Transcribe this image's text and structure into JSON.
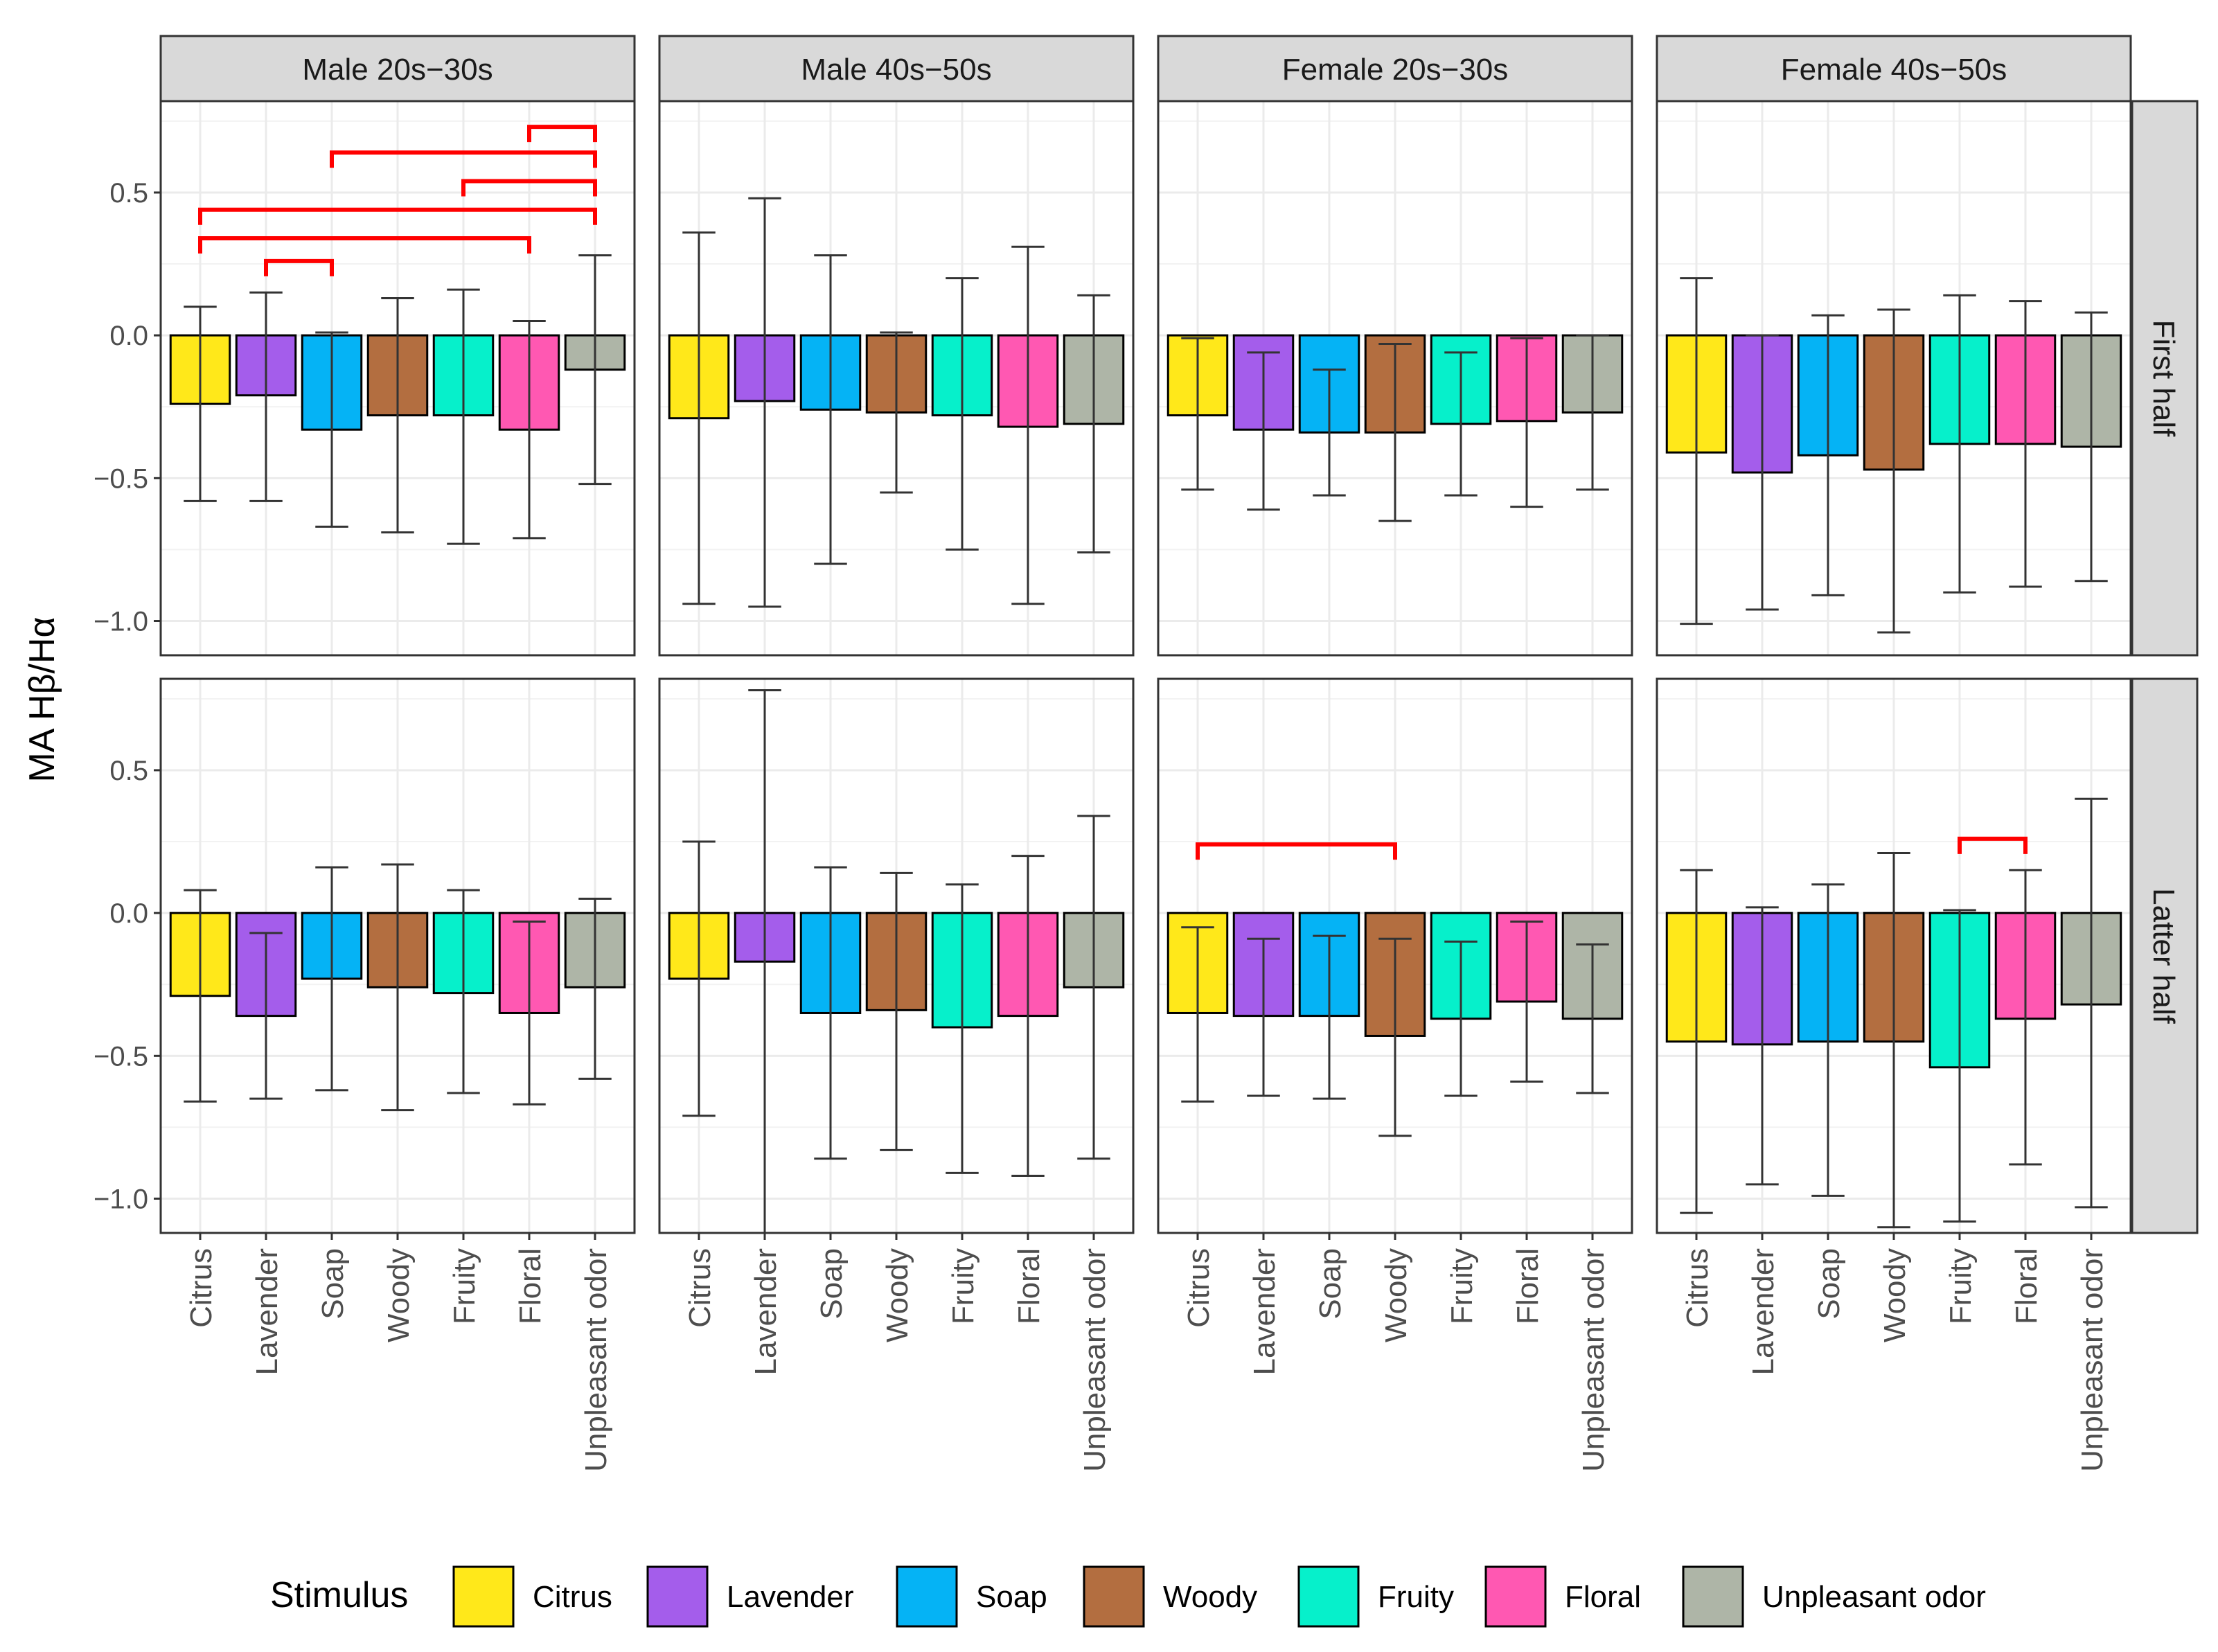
{
  "chart_data": {
    "type": "bar",
    "ylabel": "MA Hβ/Hα",
    "xlabel": "",
    "ylim": [
      -1.12,
      0.82
    ],
    "yticks": [
      0.5,
      0.0,
      -0.5,
      -1.0
    ],
    "ytick_labels": [
      "0.5",
      "0.0",
      "−0.5",
      "−1.0"
    ],
    "categories": [
      "Citrus",
      "Lavender",
      "Soap",
      "Woody",
      "Fruity",
      "Floral",
      "Unpleasant odor"
    ],
    "colors": [
      "#FFE81A",
      "#A45DEB",
      "#05B3F5",
      "#B36E40",
      "#06F0CB",
      "#FF58B2",
      "#AEB5A7"
    ],
    "columns": [
      "Male 20s−30s",
      "Male 40s−50s",
      "Female 20s−30s",
      "Female 40s−50s"
    ],
    "rows": [
      "First half",
      "Latter half"
    ],
    "legend": {
      "title": "Stimulus",
      "position": "bottom",
      "items": [
        "Citrus",
        "Lavender",
        "Soap",
        "Woody",
        "Fruity",
        "Floral",
        "Unpleasant odor"
      ]
    },
    "significance_color": "#FF0000",
    "panels": [
      {
        "row": 0,
        "col": 0,
        "values": [
          -0.24,
          -0.21,
          -0.33,
          -0.28,
          -0.28,
          -0.33,
          -0.12
        ],
        "err_low": [
          -0.58,
          -0.58,
          -0.67,
          -0.69,
          -0.73,
          -0.71,
          -0.52
        ],
        "err_high": [
          0.1,
          0.15,
          0.01,
          0.13,
          0.16,
          0.05,
          0.28
        ],
        "brackets": [
          {
            "from": 5,
            "to": 6,
            "y": 0.73
          },
          {
            "from": 2,
            "to": 6,
            "y": 0.64
          },
          {
            "from": 4,
            "to": 6,
            "y": 0.54
          },
          {
            "from": 0,
            "to": 6,
            "y": 0.44
          },
          {
            "from": 0,
            "to": 5,
            "y": 0.34
          },
          {
            "from": 1,
            "to": 2,
            "y": 0.26
          }
        ]
      },
      {
        "row": 0,
        "col": 1,
        "values": [
          -0.29,
          -0.23,
          -0.26,
          -0.27,
          -0.28,
          -0.32,
          -0.31
        ],
        "err_low": [
          -0.94,
          -0.95,
          -0.8,
          -0.55,
          -0.75,
          -0.94,
          -0.76
        ],
        "err_high": [
          0.36,
          0.48,
          0.28,
          0.01,
          0.2,
          0.31,
          0.14
        ],
        "brackets": []
      },
      {
        "row": 0,
        "col": 2,
        "values": [
          -0.28,
          -0.33,
          -0.34,
          -0.34,
          -0.31,
          -0.3,
          -0.27
        ],
        "err_low": [
          -0.54,
          -0.61,
          -0.56,
          -0.65,
          -0.56,
          -0.6,
          -0.54
        ],
        "err_high": [
          -0.01,
          -0.06,
          -0.12,
          -0.03,
          -0.06,
          -0.01,
          0.0
        ],
        "brackets": []
      },
      {
        "row": 0,
        "col": 3,
        "values": [
          -0.41,
          -0.48,
          -0.42,
          -0.47,
          -0.38,
          -0.38,
          -0.39
        ],
        "err_low": [
          -1.01,
          -0.96,
          -0.91,
          -1.04,
          -0.9,
          -0.88,
          -0.86
        ],
        "err_high": [
          0.2,
          0.0,
          0.07,
          0.09,
          0.14,
          0.12,
          0.08
        ],
        "brackets": []
      },
      {
        "row": 1,
        "col": 0,
        "values": [
          -0.29,
          -0.36,
          -0.23,
          -0.26,
          -0.28,
          -0.35,
          -0.26
        ],
        "err_low": [
          -0.66,
          -0.65,
          -0.62,
          -0.69,
          -0.63,
          -0.67,
          -0.58
        ],
        "err_high": [
          0.08,
          -0.07,
          0.16,
          0.17,
          0.08,
          -0.03,
          0.05
        ],
        "brackets": []
      },
      {
        "row": 1,
        "col": 1,
        "values": [
          -0.23,
          -0.17,
          -0.35,
          -0.34,
          -0.4,
          -0.36,
          -0.26
        ],
        "err_low": [
          -0.71,
          -1.12,
          -0.86,
          -0.83,
          -0.91,
          -0.92,
          -0.86
        ],
        "err_high": [
          0.25,
          0.78,
          0.16,
          0.14,
          0.1,
          0.2,
          0.34
        ],
        "brackets": []
      },
      {
        "row": 1,
        "col": 2,
        "values": [
          -0.35,
          -0.36,
          -0.36,
          -0.43,
          -0.37,
          -0.31,
          -0.37
        ],
        "err_low": [
          -0.66,
          -0.64,
          -0.65,
          -0.78,
          -0.64,
          -0.59,
          -0.63
        ],
        "err_high": [
          -0.05,
          -0.09,
          -0.08,
          -0.09,
          -0.1,
          -0.03,
          -0.11
        ],
        "brackets": [
          {
            "from": 0,
            "to": 3,
            "y": 0.24
          }
        ]
      },
      {
        "row": 1,
        "col": 3,
        "values": [
          -0.45,
          -0.46,
          -0.45,
          -0.45,
          -0.54,
          -0.37,
          -0.32
        ],
        "err_low": [
          -1.05,
          -0.95,
          -0.99,
          -1.1,
          -1.08,
          -0.88,
          -1.03
        ],
        "err_high": [
          0.15,
          0.02,
          0.1,
          0.21,
          0.01,
          0.15,
          0.4
        ],
        "brackets": [
          {
            "from": 4,
            "to": 5,
            "y": 0.26
          }
        ]
      }
    ]
  }
}
